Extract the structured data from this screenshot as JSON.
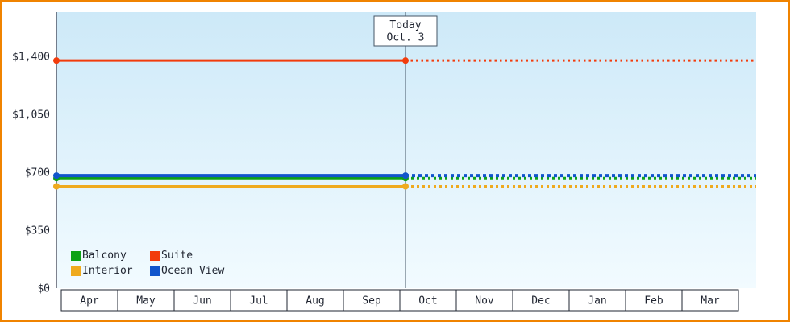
{
  "page": {
    "border_color": "#f08300",
    "background": "#ffffff"
  },
  "chart_data": {
    "type": "line",
    "title": "",
    "xlabel": "",
    "ylabel": "",
    "x_categories": [
      "Apr",
      "May",
      "Jun",
      "Jul",
      "Aug",
      "Sep",
      "Oct",
      "Nov",
      "Dec",
      "Jan",
      "Feb",
      "Mar"
    ],
    "y_tick_values": [
      0,
      350,
      700,
      1050,
      1400
    ],
    "y_tick_labels": [
      "$0",
      "$350",
      "$700",
      "$1,050",
      "$1,400"
    ],
    "ylim": [
      0,
      1400
    ],
    "grid": false,
    "legend_position": "bottom-left-inside",
    "today_marker": {
      "line1": "Today",
      "line2": "Oct. 3",
      "month_index": 6,
      "month_fraction": 0.1
    },
    "series": [
      {
        "name": "Balcony",
        "color": "#0da216",
        "value": 665
      },
      {
        "name": "Suite",
        "color": "#f23c0c",
        "value": 1375
      },
      {
        "name": "Interior",
        "color": "#efaa1e",
        "value": 615
      },
      {
        "name": "Ocean View",
        "color": "#1155cc",
        "value": 680
      }
    ],
    "style": {
      "solid_before_today": true,
      "dotted_after_today": true,
      "plot_bg_top": "#cde9f8",
      "plot_bg_bottom": "#f2fbff",
      "axis_color": "#333344",
      "text_color": "#1f2430",
      "today_line_color": "#445566",
      "month_cell_fill": "#ffffff",
      "month_cell_border": "#1f2430"
    }
  }
}
